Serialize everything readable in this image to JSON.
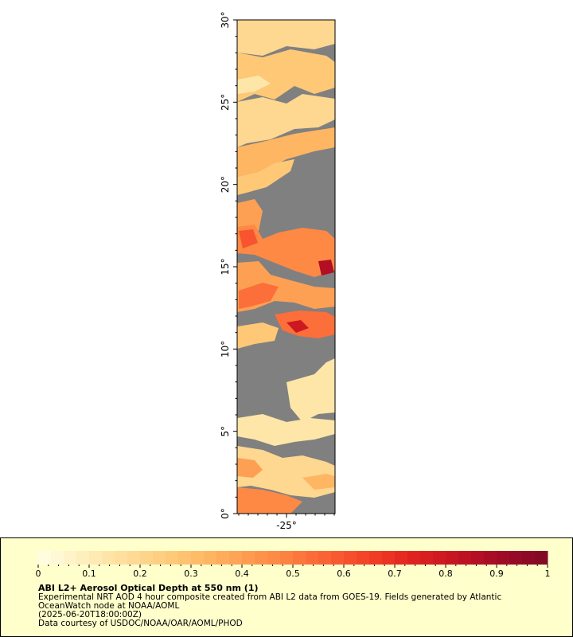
{
  "map": {
    "lat_ticks": [
      "0°",
      "5°",
      "10°",
      "15°",
      "20°",
      "25°",
      "30°"
    ],
    "lon_ticks": [
      "-25°"
    ],
    "land_color": "#808080",
    "no_data_color": "#ffffff"
  },
  "colorbar": {
    "ticks": [
      "0",
      "0.1",
      "0.2",
      "0.3",
      "0.4",
      "0.5",
      "0.6",
      "0.7",
      "0.8",
      "0.9",
      "1"
    ],
    "stops": [
      "#ffffe6",
      "#fff2c8",
      "#fee6a8",
      "#fed790",
      "#fec877",
      "#feb663",
      "#fda054",
      "#fd8944",
      "#fc6e3a",
      "#f8542f",
      "#ee3a24",
      "#e0231f",
      "#cb1821",
      "#b20e24",
      "#960a26",
      "#7f0a24"
    ]
  },
  "legend": {
    "title": "ABI L2+ Aerosol Optical Depth at 550 nm (1)",
    "description_line1": "Experimental NRT AOD 4 hour composite created from ABI L2 data from GOES-19. Fields generated by Atlantic",
    "description_line2": "OceanWatch node at NOAA/AOML",
    "timestamp": "(2025-06-20T18:00:00Z)",
    "credit": "Data courtesy of USDOC/NOAA/OAR/AOML/PHOD"
  }
}
